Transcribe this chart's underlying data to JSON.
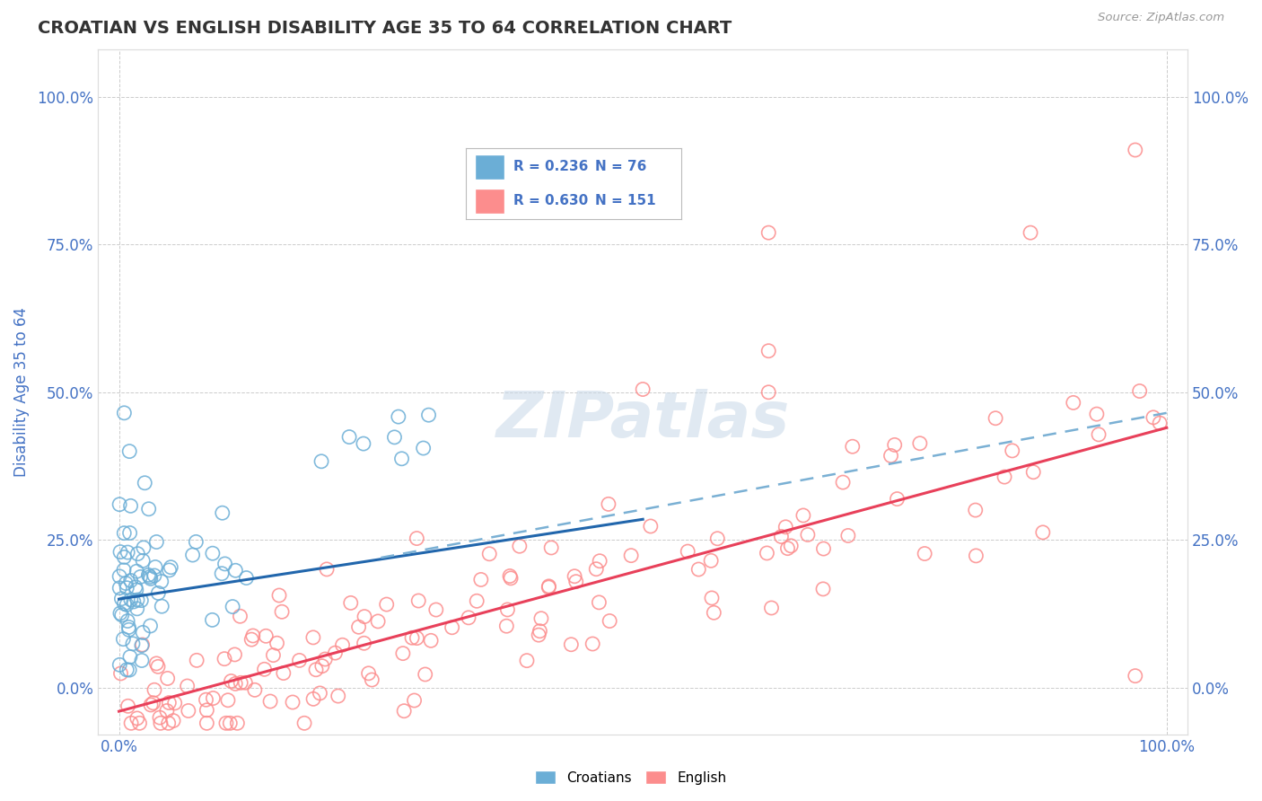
{
  "title": "CROATIAN VS ENGLISH DISABILITY AGE 35 TO 64 CORRELATION CHART",
  "source": "Source: ZipAtlas.com",
  "ylabel": "Disability Age 35 to 64",
  "xlim": [
    -0.02,
    1.02
  ],
  "ylim": [
    -0.08,
    1.08
  ],
  "x_tick_labels": [
    "0.0%",
    "100.0%"
  ],
  "x_tick_positions": [
    0.0,
    1.0
  ],
  "y_tick_labels": [
    "0.0%",
    "25.0%",
    "50.0%",
    "75.0%",
    "100.0%"
  ],
  "y_tick_positions": [
    0.0,
    0.25,
    0.5,
    0.75,
    1.0
  ],
  "watermark_text": "ZIPatlas",
  "legend_R1": "0.236",
  "legend_N1": "76",
  "legend_R2": "0.630",
  "legend_N2": "151",
  "croatian_color": "#6baed6",
  "english_color": "#fc8d8d",
  "croatian_line_color": "#2166ac",
  "english_line_color": "#e8405a",
  "dash_line_color": "#7ab0d4",
  "background_color": "#ffffff",
  "grid_color": "#cccccc",
  "title_color": "#333333",
  "axis_label_color": "#4472c4",
  "source_color": "#999999",
  "croatian_line": {
    "x0": 0.0,
    "x1": 0.5,
    "y0": 0.15,
    "y1": 0.285
  },
  "english_line": {
    "x0": 0.0,
    "x1": 1.0,
    "y0": -0.04,
    "y1": 0.44
  },
  "dash_line": {
    "x0": 0.25,
    "x1": 1.0,
    "y0": 0.22,
    "y1": 0.465
  }
}
